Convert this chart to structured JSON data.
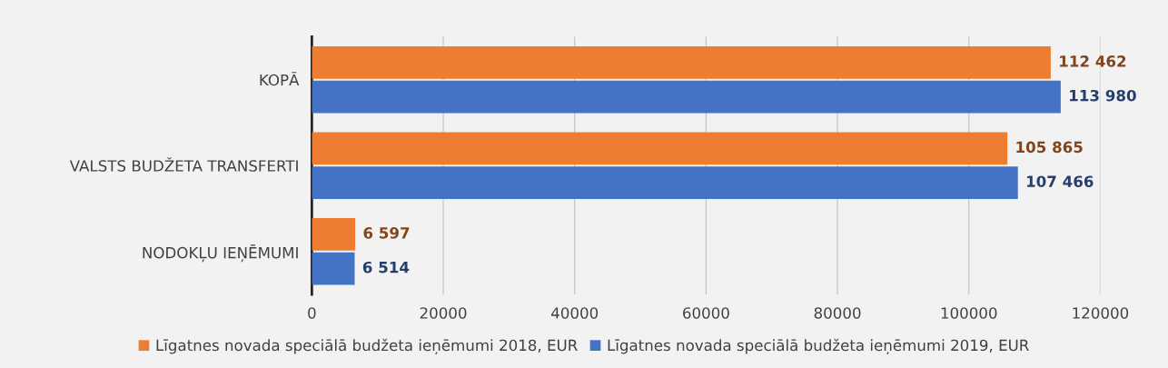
{
  "chart_data": {
    "type": "bar",
    "orientation": "horizontal",
    "categories": [
      "KOPĀ",
      "VALSTS BUDŽETA TRANSFERTI",
      "NODOKĻU IEŅĒMUMI"
    ],
    "series": [
      {
        "name": "Līgatnes novada speciālā budžeta ieņēmumi 2018, EUR",
        "color": "#ed7d31",
        "values": [
          112462,
          105865,
          6597
        ],
        "value_labels": [
          "112 462",
          "105 865",
          "6 597"
        ]
      },
      {
        "name": "Līgatnes novada speciālā budžeta ieņēmumi 2019, EUR",
        "color": "#4472c4",
        "values": [
          113980,
          107466,
          6514
        ],
        "value_labels": [
          "113 980",
          "107 466",
          "6 514"
        ]
      }
    ],
    "xlim": [
      0,
      120000
    ],
    "xticks": [
      0,
      20000,
      40000,
      60000,
      80000,
      100000,
      120000
    ],
    "grid": "x",
    "legend": "bottom"
  }
}
